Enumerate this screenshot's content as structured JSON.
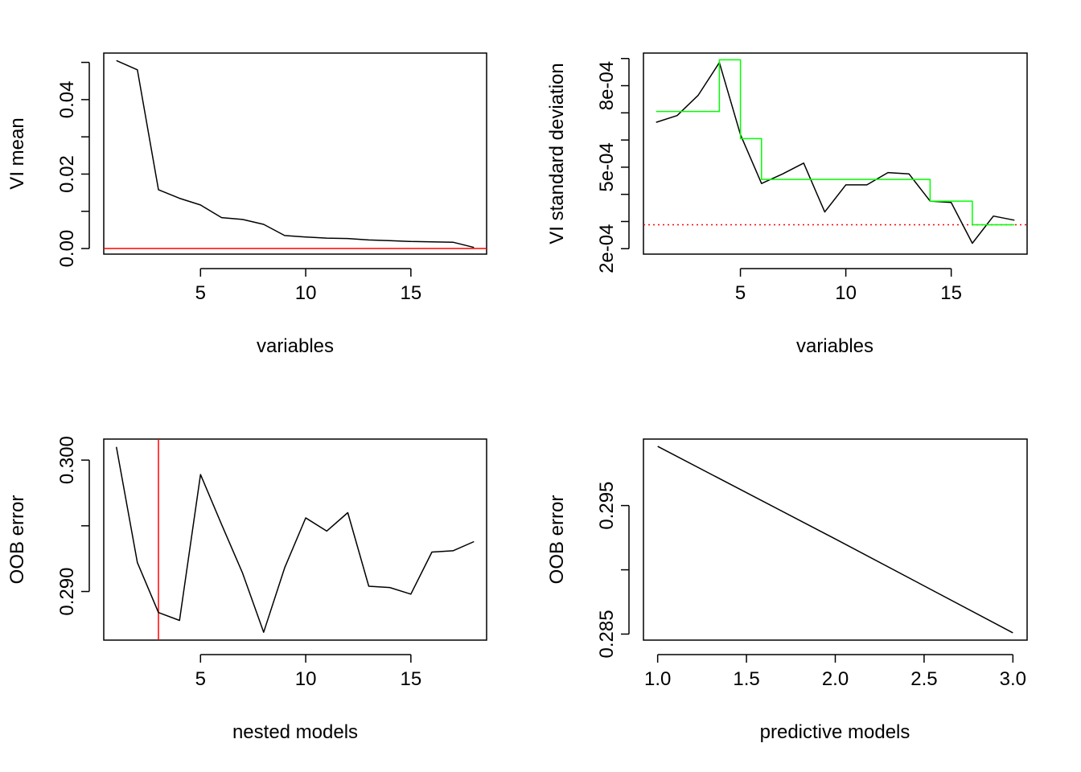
{
  "chart_data": [
    {
      "type": "line",
      "xlabel": "variables",
      "ylabel": "VI mean",
      "xlim": [
        0.4,
        18.6
      ],
      "ylim": [
        -0.0015,
        0.0525
      ],
      "xticks": [
        5,
        10,
        15
      ],
      "xtick_labels": [
        "5",
        "10",
        "15"
      ],
      "yticks": [
        0.0,
        0.01,
        0.02,
        0.03,
        0.04,
        0.05
      ],
      "ytick_labels": [
        "0.00",
        "",
        "0.02",
        "",
        "0.04",
        ""
      ],
      "series": [
        {
          "color": "#000000",
          "style": "solid",
          "x": [
            1,
            2,
            3,
            4,
            5,
            6,
            7,
            8,
            9,
            10,
            11,
            12,
            13,
            14,
            15,
            16,
            17,
            18
          ],
          "values": [
            0.0505,
            0.048,
            0.0158,
            0.0135,
            0.0117,
            0.0083,
            0.0078,
            0.0065,
            0.0035,
            0.0031,
            0.0028,
            0.0027,
            0.0023,
            0.0021,
            0.0019,
            0.0018,
            0.0017,
            0.0003
          ]
        }
      ],
      "hlines": [
        {
          "y": 0.0,
          "color": "#ff0000",
          "style": "solid"
        }
      ],
      "vlines": [],
      "grid": false,
      "legend": "none"
    },
    {
      "type": "line",
      "xlabel": "variables",
      "ylabel": "VI standard deviation",
      "xlim": [
        0.4,
        18.6
      ],
      "ylim": [
        0.00018,
        0.00092
      ],
      "xticks": [
        5,
        10,
        15
      ],
      "xtick_labels": [
        "5",
        "10",
        "15"
      ],
      "yticks": [
        0.0002,
        0.0003,
        0.0004,
        0.0005,
        0.0006,
        0.0007,
        0.0008,
        0.0009
      ],
      "ytick_labels": [
        "2e-04",
        "",
        "",
        "5e-04",
        "",
        "",
        "8e-04",
        ""
      ],
      "series": [
        {
          "color": "#000000",
          "style": "solid",
          "x": [
            1,
            2,
            3,
            4,
            5,
            6,
            7,
            8,
            9,
            10,
            11,
            12,
            13,
            14,
            15,
            16,
            17,
            18
          ],
          "values": [
            0.000665,
            0.00069,
            0.000765,
            0.000885,
            0.00062,
            0.00044,
            0.000475,
            0.000515,
            0.000335,
            0.000435,
            0.000435,
            0.00048,
            0.000475,
            0.000375,
            0.00037,
            0.00022,
            0.00032,
            0.000305
          ]
        },
        {
          "color": "#00ff00",
          "style": "step",
          "x": [
            1,
            4,
            4,
            5,
            5,
            6,
            6,
            14,
            14,
            16,
            16,
            18
          ],
          "values": [
            0.000705,
            0.000705,
            0.000895,
            0.000895,
            0.000605,
            0.000605,
            0.000455,
            0.000455,
            0.000375,
            0.000375,
            0.000288,
            0.000288
          ]
        }
      ],
      "hlines": [
        {
          "y": 0.000288,
          "color": "#ff0000",
          "style": "dotted"
        }
      ],
      "vlines": [],
      "grid": false,
      "legend": "none"
    },
    {
      "type": "line",
      "xlabel": "nested models",
      "ylabel": "OOB error",
      "xlim": [
        0.4,
        18.6
      ],
      "ylim": [
        0.2863,
        0.3016
      ],
      "xticks": [
        5,
        10,
        15
      ],
      "xtick_labels": [
        "5",
        "10",
        "15"
      ],
      "yticks": [
        0.29,
        0.295,
        0.3
      ],
      "ytick_labels": [
        "0.290",
        "",
        "0.300"
      ],
      "series": [
        {
          "color": "#000000",
          "style": "solid",
          "x": [
            1,
            2,
            3,
            4,
            5,
            6,
            7,
            8,
            9,
            10,
            11,
            12,
            13,
            14,
            15,
            16,
            17,
            18
          ],
          "values": [
            0.301,
            0.2922,
            0.2884,
            0.2878,
            0.2989,
            0.2951,
            0.2914,
            0.2869,
            0.2918,
            0.2956,
            0.2946,
            0.296,
            0.2904,
            0.2903,
            0.2898,
            0.293,
            0.2931,
            0.2938
          ]
        }
      ],
      "hlines": [],
      "vlines": [
        {
          "x": 3,
          "color": "#ff0000",
          "style": "solid"
        }
      ],
      "grid": false,
      "legend": "none"
    },
    {
      "type": "line",
      "xlabel": "predictive models",
      "ylabel": "OOB error",
      "xlim": [
        0.92,
        3.08
      ],
      "ylim": [
        0.28453,
        0.30017
      ],
      "xticks": [
        1.0,
        1.5,
        2.0,
        2.5,
        3.0
      ],
      "xtick_labels": [
        "1.0",
        "1.5",
        "2.0",
        "2.5",
        "3.0"
      ],
      "yticks": [
        0.285,
        0.29,
        0.295
      ],
      "ytick_labels": [
        "0.285",
        "",
        "0.295"
      ],
      "series": [
        {
          "color": "#000000",
          "style": "solid",
          "x": [
            1,
            2,
            3
          ],
          "values": [
            0.2996,
            0.2924,
            0.2851
          ]
        }
      ],
      "hlines": [],
      "vlines": [],
      "grid": false,
      "legend": "none"
    }
  ]
}
